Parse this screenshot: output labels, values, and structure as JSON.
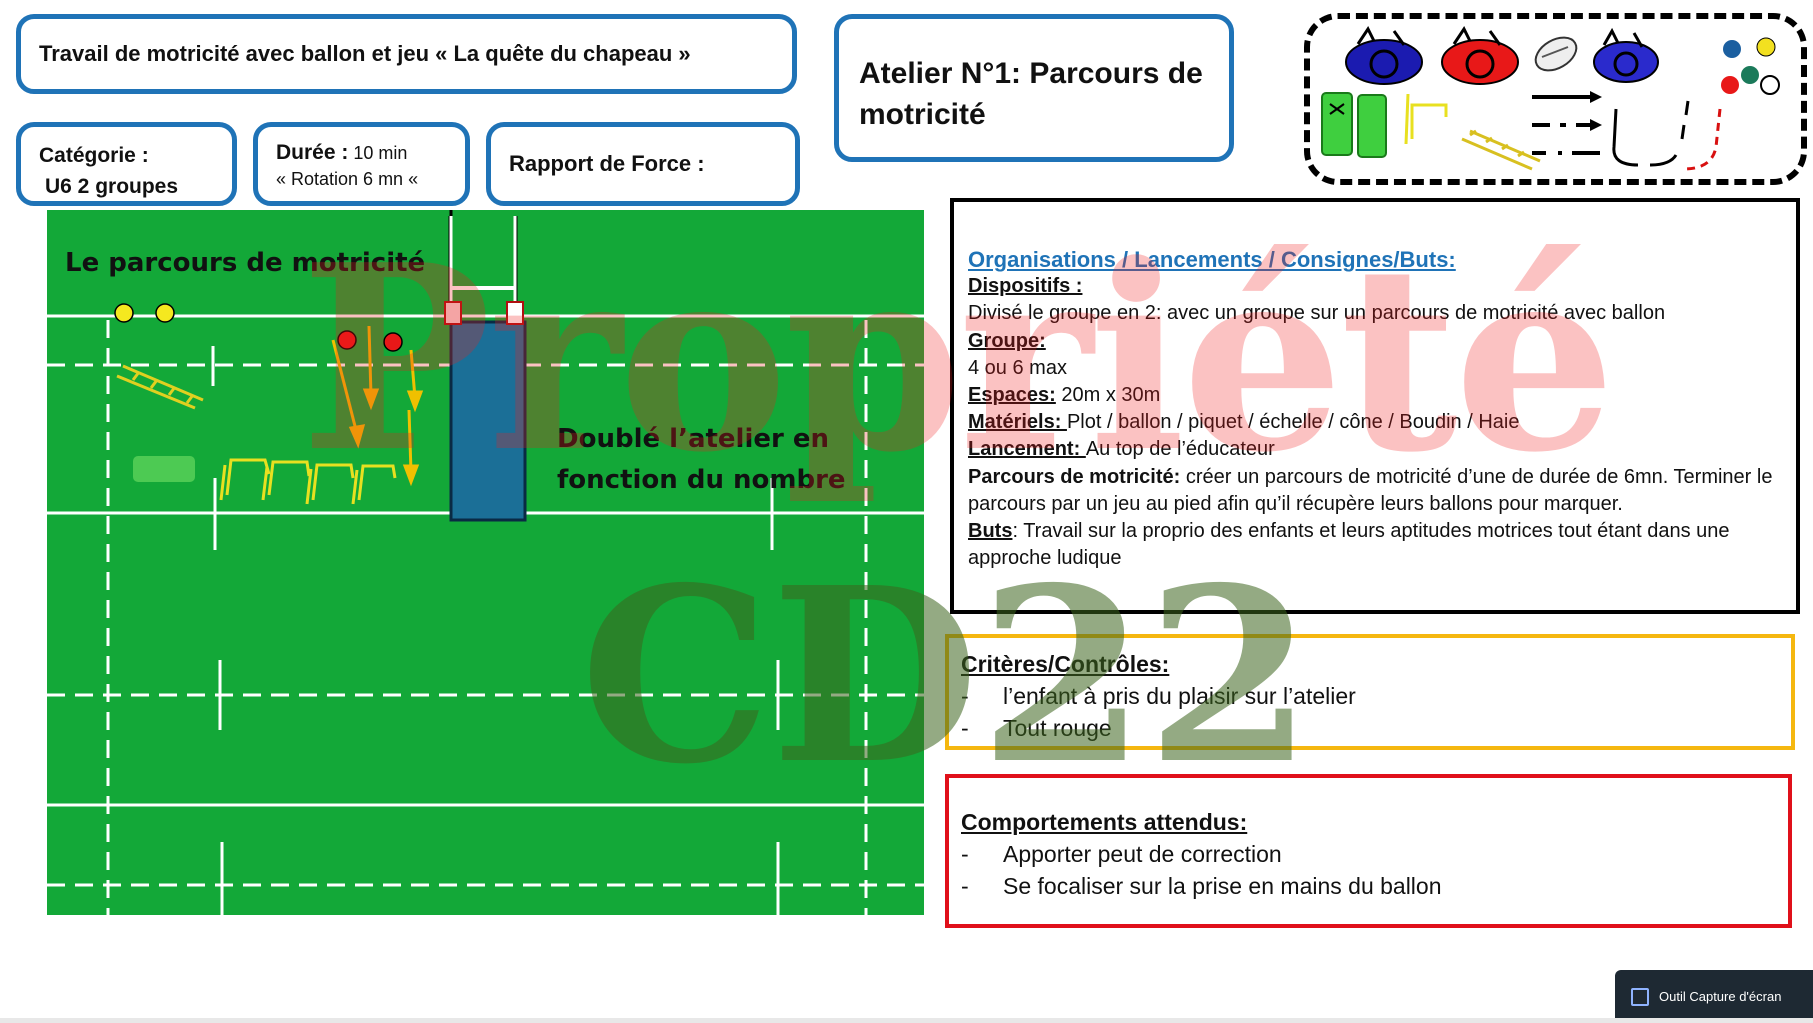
{
  "header": {
    "title": "Travail de motricité avec ballon et jeu « La quête du chapeau »",
    "atelier": "Atelier N°1:  Parcours de motricité",
    "categorie_label": "Catégorie :",
    "categorie_value": "U6 2 groupes",
    "duree_label": "Durée :",
    "duree_value": " 10 min",
    "duree_rotation": "« Rotation 6 mn «",
    "rapport_label": "Rapport de Force :"
  },
  "field": {
    "label_parcours": "Le parcours de motricité",
    "label_double_1": "Doublé l’atelier en",
    "label_double_2": "fonction du nombre"
  },
  "watermark": {
    "line1": "Propriété",
    "line2": "CD22"
  },
  "organisation": {
    "heading": "Organisations / Lancements / Consignes/Buts:",
    "dispositifs_label": "Dispositifs :",
    "dispositifs_text": "Divisé le groupe en 2: avec un groupe sur un parcours de motricité avec ballon",
    "groupe_label": "Groupe:",
    "groupe_text": "4 ou 6 max",
    "espaces_label": "Espaces:",
    "espaces_text": " 20m x 30m",
    "materiels_label": "Matériels: ",
    "materiels_text": " Plot / ballon / piquet / échelle / cône / Boudin / Haie",
    "lancement_label": "Lancement: ",
    "lancement_text": " Au top de l’éducateur",
    "parcours_label": "Parcours de motricité:",
    "parcours_text": " créer un parcours de motricité d’une de durée de 6mn. Terminer le parcours par un jeu au pied afin qu’il récupère leurs ballons pour marquer.",
    "buts_label": "Buts",
    "buts_text": ":  Travail sur la proprio des enfants et leurs aptitudes motrices tout étant dans une approche ludique"
  },
  "criteres": {
    "heading": "Critères/Contrôles:",
    "items": [
      "l’enfant à pris du plaisir sur l’atelier",
      "Tout rouge"
    ]
  },
  "comportements": {
    "heading": "Comportements attendus:",
    "items": [
      "Apporter peut de correction",
      "Se focaliser sur la prise en mains du ballon"
    ]
  },
  "taskbar": {
    "label": "Outil Capture d'écran"
  },
  "colors": {
    "frame_blue": "#1f73b7",
    "field_green": "#13a838",
    "criteres_border": "#f5b70f",
    "comportements_border": "#e0101a"
  },
  "list_marker": "-"
}
